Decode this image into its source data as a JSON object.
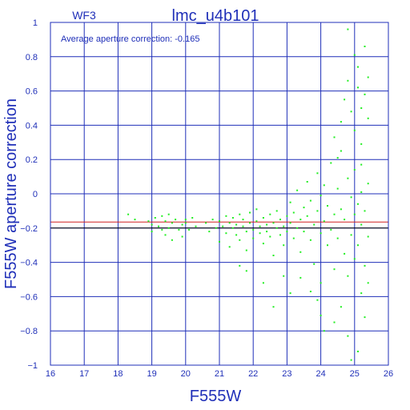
{
  "chart_data": {
    "type": "scatter",
    "title": "lmc_u4b101",
    "subtitle": "WF3",
    "annotation": "Average aperture correction:  -0.165",
    "xlabel": "F555W",
    "ylabel": "F555W aperture correction",
    "xlim": [
      16,
      26
    ],
    "ylim": [
      -1,
      1
    ],
    "xticks": [
      16,
      17,
      18,
      19,
      20,
      21,
      22,
      23,
      24,
      25,
      26
    ],
    "yticks": [
      -1,
      -0.8,
      -0.6,
      -0.4,
      -0.2,
      0,
      0.2,
      0.4,
      0.6,
      0.8,
      1
    ],
    "ytick_labels": [
      "−1",
      "−0.8",
      "−0.6",
      "−0.4",
      "−0.2",
      "0",
      "0.2",
      "0.4",
      "0.6",
      "0.8",
      "1"
    ],
    "grid": true,
    "hlines": [
      {
        "y": -0.165,
        "color": "#d02020"
      },
      {
        "y": -0.2,
        "color": "#000000"
      }
    ],
    "colors": {
      "axis": "#1f2fb8",
      "points": "#22ee22",
      "background": "#ffffff"
    },
    "series": [
      {
        "points": [
          [
            18.3,
            -0.12
          ],
          [
            18.5,
            -0.15
          ],
          [
            18.9,
            -0.16
          ],
          [
            19.0,
            -0.22
          ],
          [
            19.0,
            -0.18
          ],
          [
            19.1,
            -0.14
          ],
          [
            19.2,
            -0.19
          ],
          [
            19.3,
            -0.13
          ],
          [
            19.3,
            -0.21
          ],
          [
            19.4,
            -0.16
          ],
          [
            19.4,
            -0.24
          ],
          [
            19.5,
            -0.12
          ],
          [
            19.5,
            -0.2
          ],
          [
            19.6,
            -0.17
          ],
          [
            19.6,
            -0.27
          ],
          [
            19.7,
            -0.15
          ],
          [
            19.8,
            -0.21
          ],
          [
            19.9,
            -0.18
          ],
          [
            19.9,
            -0.25
          ],
          [
            20.0,
            -0.15
          ],
          [
            20.0,
            -0.17
          ],
          [
            20.1,
            -0.21
          ],
          [
            20.2,
            -0.14
          ],
          [
            20.3,
            -0.19
          ],
          [
            20.6,
            -0.17
          ],
          [
            20.7,
            -0.22
          ],
          [
            20.8,
            -0.15
          ],
          [
            20.9,
            -0.2
          ],
          [
            21.0,
            -0.16
          ],
          [
            21.0,
            -0.28
          ],
          [
            21.1,
            -0.19
          ],
          [
            21.2,
            -0.13
          ],
          [
            21.2,
            -0.23
          ],
          [
            21.3,
            -0.17
          ],
          [
            21.3,
            -0.31
          ],
          [
            21.4,
            -0.2
          ],
          [
            21.4,
            -0.14
          ],
          [
            21.5,
            -0.24
          ],
          [
            21.5,
            -0.18
          ],
          [
            21.6,
            -0.12
          ],
          [
            21.6,
            -0.27
          ],
          [
            21.7,
            -0.19
          ],
          [
            21.7,
            -0.15
          ],
          [
            21.8,
            -0.22
          ],
          [
            21.8,
            -0.33
          ],
          [
            21.9,
            -0.17
          ],
          [
            21.9,
            -0.11
          ],
          [
            22.0,
            -0.21
          ],
          [
            22.0,
            -0.26
          ],
          [
            22.1,
            -0.16
          ],
          [
            22.1,
            -0.09
          ],
          [
            22.2,
            -0.23
          ],
          [
            22.2,
            -0.19
          ],
          [
            22.3,
            -0.14
          ],
          [
            22.3,
            -0.29
          ],
          [
            22.4,
            -0.18
          ],
          [
            22.4,
            -0.22
          ],
          [
            22.5,
            -0.12
          ],
          [
            22.5,
            -0.25
          ],
          [
            22.6,
            -0.17
          ],
          [
            22.6,
            -0.36
          ],
          [
            22.7,
            -0.2
          ],
          [
            22.7,
            -0.1
          ],
          [
            22.8,
            -0.24
          ],
          [
            22.8,
            -0.15
          ],
          [
            22.9,
            -0.19
          ],
          [
            22.9,
            -0.3
          ],
          [
            23.0,
            -0.13
          ],
          [
            23.0,
            -0.22
          ],
          [
            21.8,
            -0.45
          ],
          [
            22.3,
            -0.52
          ],
          [
            22.6,
            -0.66
          ],
          [
            23.1,
            -0.58
          ],
          [
            21.6,
            -0.42
          ],
          [
            22.9,
            -0.48
          ],
          [
            23.1,
            -0.17
          ],
          [
            23.1,
            -0.05
          ],
          [
            23.2,
            -0.26
          ],
          [
            23.2,
            -0.11
          ],
          [
            23.3,
            -0.2
          ],
          [
            23.3,
            0.02
          ],
          [
            23.4,
            -0.15
          ],
          [
            23.4,
            -0.34
          ],
          [
            23.5,
            -0.08
          ],
          [
            23.5,
            -0.22
          ],
          [
            23.6,
            -0.13
          ],
          [
            23.6,
            0.07
          ],
          [
            23.7,
            -0.27
          ],
          [
            23.7,
            -0.04
          ],
          [
            23.8,
            -0.18
          ],
          [
            23.8,
            -0.41
          ],
          [
            23.9,
            -0.1
          ],
          [
            23.9,
            0.12
          ],
          [
            24.0,
            -0.23
          ],
          [
            24.0,
            -0.01
          ],
          [
            24.0,
            -0.52
          ],
          [
            24.1,
            -0.16
          ],
          [
            24.1,
            0.05
          ],
          [
            24.2,
            -0.3
          ],
          [
            24.2,
            -0.07
          ],
          [
            24.3,
            0.18
          ],
          [
            24.3,
            -0.21
          ],
          [
            24.4,
            -0.12
          ],
          [
            24.4,
            -0.44
          ],
          [
            24.5,
            0.03
          ],
          [
            24.5,
            -0.26
          ],
          [
            24.6,
            -0.09
          ],
          [
            24.6,
            0.25
          ],
          [
            24.7,
            -0.35
          ],
          [
            24.7,
            -0.15
          ],
          [
            24.8,
            0.09
          ],
          [
            24.8,
            -0.48
          ],
          [
            24.9,
            -0.02
          ],
          [
            24.9,
            -0.24
          ],
          [
            25.0,
            0.14
          ],
          [
            25.0,
            -0.38
          ],
          [
            23.4,
            -0.49
          ],
          [
            23.9,
            -0.62
          ],
          [
            24.0,
            -0.71
          ],
          [
            24.1,
            -0.8
          ],
          [
            24.6,
            -0.66
          ],
          [
            24.8,
            -0.83
          ],
          [
            24.9,
            -0.97
          ],
          [
            25.2,
            -0.58
          ],
          [
            25.3,
            -0.72
          ],
          [
            25.4,
            -0.52
          ],
          [
            23.7,
            -0.57
          ],
          [
            24.4,
            -0.75
          ],
          [
            24.4,
            0.33
          ],
          [
            24.6,
            0.42
          ],
          [
            24.7,
            0.55
          ],
          [
            24.8,
            0.66
          ],
          [
            24.9,
            0.48
          ],
          [
            25.0,
            0.37
          ],
          [
            25.1,
            0.62
          ],
          [
            25.1,
            0.74
          ],
          [
            25.2,
            0.5
          ],
          [
            25.2,
            0.29
          ],
          [
            25.3,
            0.58
          ],
          [
            25.3,
            0.86
          ],
          [
            25.4,
            0.68
          ],
          [
            25.4,
            0.44
          ],
          [
            24.8,
            0.96
          ],
          [
            25.0,
            0.81
          ],
          [
            24.5,
            0.21
          ],
          [
            25.2,
            0.17
          ],
          [
            25.0,
            -0.12
          ],
          [
            25.1,
            -0.06
          ],
          [
            25.1,
            -0.3
          ],
          [
            25.2,
            -0.18
          ],
          [
            25.2,
            0.01
          ],
          [
            25.3,
            -0.42
          ],
          [
            25.3,
            -0.1
          ],
          [
            25.4,
            -0.25
          ],
          [
            25.4,
            0.06
          ],
          [
            25.1,
            -0.92
          ]
        ]
      }
    ]
  }
}
